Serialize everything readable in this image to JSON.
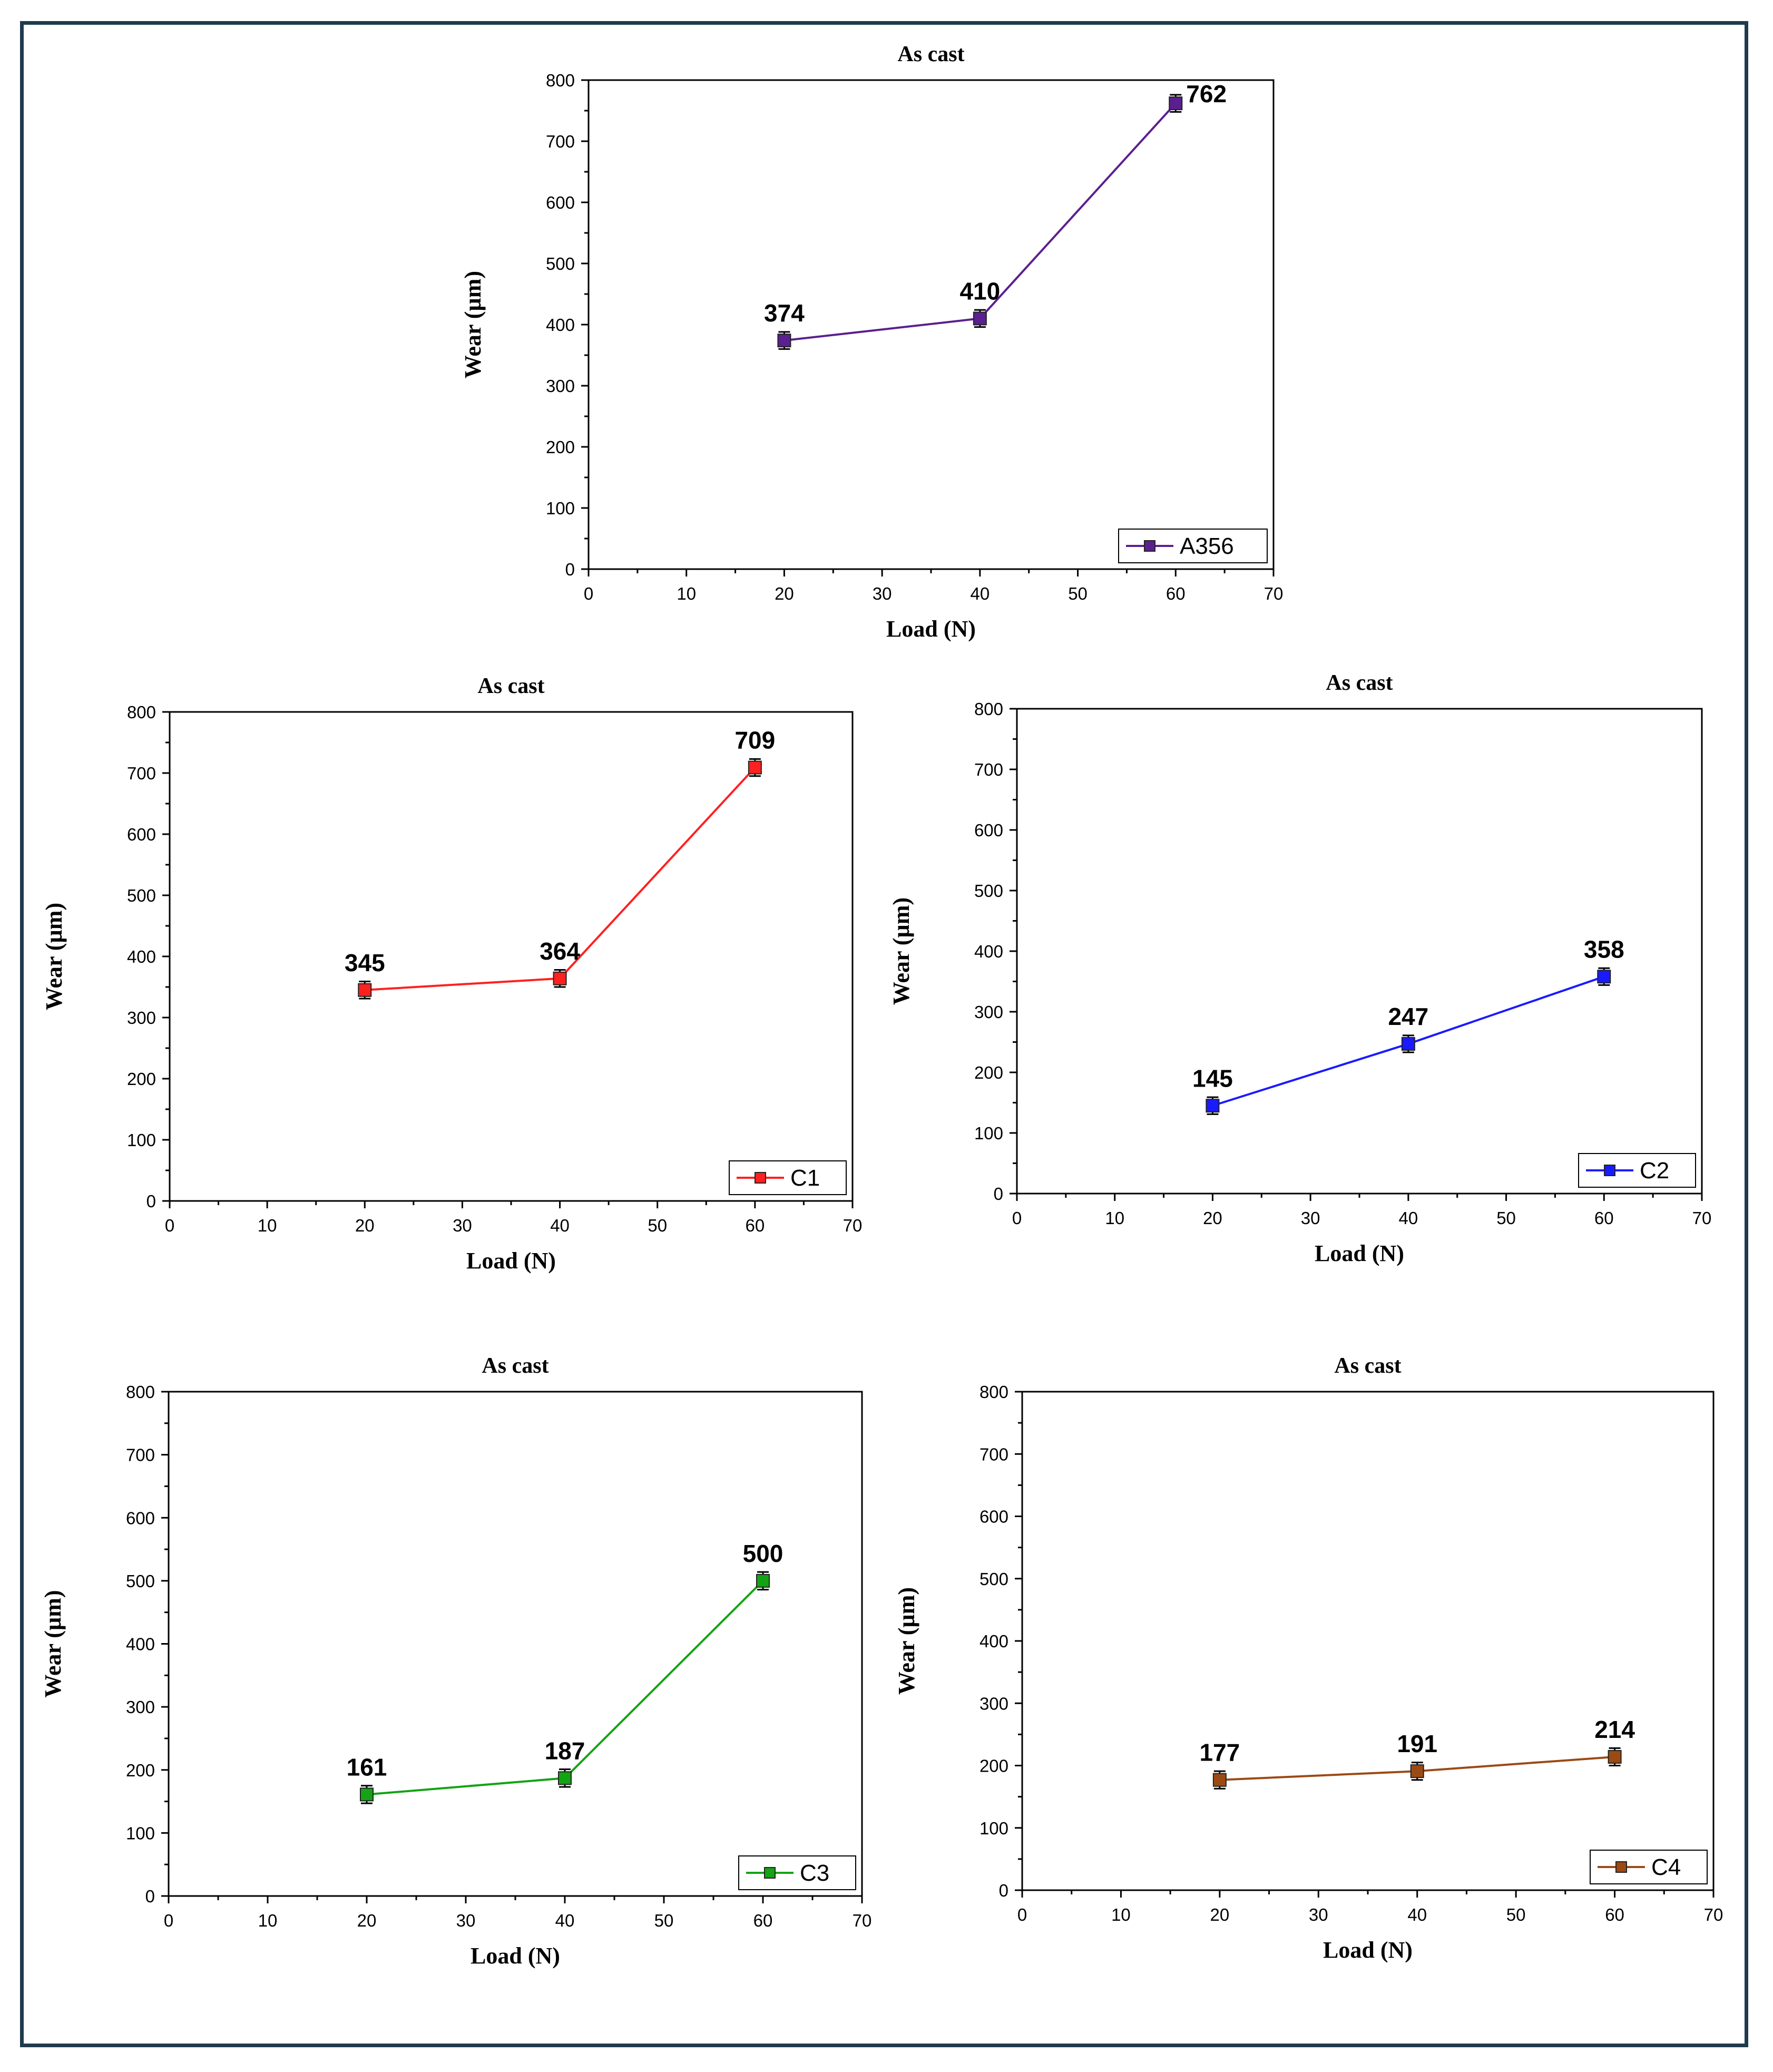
{
  "chart_data": [
    {
      "type": "line",
      "title": "As cast",
      "xlabel": "Load (N)",
      "ylabel": "Wear (µm)",
      "xlim": [
        0,
        70
      ],
      "ylim": [
        0,
        800
      ],
      "xticks": [
        "0",
        "10",
        "20",
        "30",
        "40",
        "50",
        "60",
        "70"
      ],
      "yticks": [
        "0",
        "100",
        "200",
        "300",
        "400",
        "500",
        "600",
        "700",
        "800"
      ],
      "legend": "bottom-right",
      "series": [
        {
          "name": "A356",
          "color": "#5b1f8f",
          "x": [
            20,
            40,
            60
          ],
          "values": [
            374,
            410,
            762
          ],
          "labels": [
            "374",
            "410",
            "762"
          ],
          "error": [
            14,
            14,
            14
          ]
        }
      ]
    },
    {
      "type": "line",
      "title": "As cast",
      "xlabel": "Load (N)",
      "ylabel": "Wear (µm)",
      "xlim": [
        0,
        70
      ],
      "ylim": [
        0,
        800
      ],
      "xticks": [
        "0",
        "10",
        "20",
        "30",
        "40",
        "50",
        "60",
        "70"
      ],
      "yticks": [
        "0",
        "100",
        "200",
        "300",
        "400",
        "500",
        "600",
        "700",
        "800"
      ],
      "legend": "bottom-right",
      "series": [
        {
          "name": "C1",
          "color": "#ff2020",
          "x": [
            20,
            40,
            60
          ],
          "values": [
            345,
            364,
            709
          ],
          "labels": [
            "345",
            "364",
            "709"
          ],
          "error": [
            14,
            14,
            14
          ]
        }
      ]
    },
    {
      "type": "line",
      "title": "As cast",
      "xlabel": "Load (N)",
      "ylabel": "Wear (µm)",
      "xlim": [
        0,
        70
      ],
      "ylim": [
        0,
        800
      ],
      "xticks": [
        "0",
        "10",
        "20",
        "30",
        "40",
        "50",
        "60",
        "70"
      ],
      "yticks": [
        "0",
        "100",
        "200",
        "300",
        "400",
        "500",
        "600",
        "700",
        "800"
      ],
      "legend": "bottom-right",
      "series": [
        {
          "name": "C2",
          "color": "#1a1aff",
          "x": [
            20,
            40,
            60
          ],
          "values": [
            145,
            247,
            358
          ],
          "labels": [
            "145",
            "247",
            "358"
          ],
          "error": [
            14,
            14,
            14
          ]
        }
      ]
    },
    {
      "type": "line",
      "title": "As cast",
      "xlabel": "Load (N)",
      "ylabel": "Wear (µm)",
      "xlim": [
        0,
        70
      ],
      "ylim": [
        0,
        800
      ],
      "xticks": [
        "0",
        "10",
        "20",
        "30",
        "40",
        "50",
        "60",
        "70"
      ],
      "yticks": [
        "0",
        "100",
        "200",
        "300",
        "400",
        "500",
        "600",
        "700",
        "800"
      ],
      "legend": "bottom-right",
      "series": [
        {
          "name": "C3",
          "color": "#14a314",
          "x": [
            20,
            40,
            60
          ],
          "values": [
            161,
            187,
            500
          ],
          "labels": [
            "161",
            "187",
            "500"
          ],
          "error": [
            14,
            14,
            14
          ]
        }
      ]
    },
    {
      "type": "line",
      "title": "As cast",
      "xlabel": "Load (N)",
      "ylabel": "Wear (µm)",
      "xlim": [
        0,
        70
      ],
      "ylim": [
        0,
        800
      ],
      "xticks": [
        "0",
        "10",
        "20",
        "30",
        "40",
        "50",
        "60",
        "70"
      ],
      "yticks": [
        "0",
        "100",
        "200",
        "300",
        "400",
        "500",
        "600",
        "700",
        "800"
      ],
      "legend": "bottom-right",
      "series": [
        {
          "name": "C4",
          "color": "#9c4a14",
          "x": [
            20,
            40,
            60
          ],
          "values": [
            177,
            191,
            214
          ],
          "labels": [
            "177",
            "191",
            "214"
          ],
          "error": [
            14,
            14,
            14
          ]
        }
      ]
    }
  ]
}
